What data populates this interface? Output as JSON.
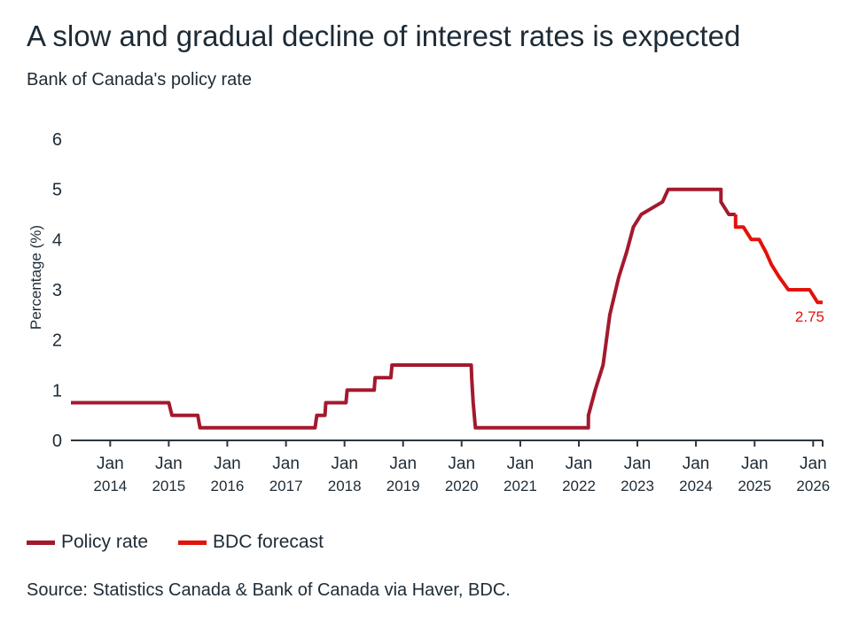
{
  "title": "A slow and gradual decline of interest rates is expected",
  "subtitle": "Bank of Canada's policy rate",
  "source": "Source: Statistics Canada & Bank of Canada via Haver, BDC.",
  "colors": {
    "policy": "#a3192e",
    "forecast": "#e3120b",
    "text": "#1d2b36"
  },
  "chart_data": {
    "type": "line",
    "title": "A slow and gradual decline of interest rates is expected",
    "subtitle": "Bank of Canada's policy rate",
    "xlabel": "",
    "ylabel": "Percentage (%)",
    "ylim": [
      0,
      6
    ],
    "xlim": [
      "2013-05-01",
      "2026-03-01"
    ],
    "yticks": [
      0,
      1,
      2,
      3,
      4,
      5,
      6
    ],
    "xticks": [
      {
        "date": "2014-01-01",
        "line1": "Jan",
        "line2": "2014"
      },
      {
        "date": "2015-01-01",
        "line1": "Jan",
        "line2": "2015"
      },
      {
        "date": "2016-01-01",
        "line1": "Jan",
        "line2": "2016"
      },
      {
        "date": "2017-01-01",
        "line1": "Jan",
        "line2": "2017"
      },
      {
        "date": "2018-01-01",
        "line1": "Jan",
        "line2": "2018"
      },
      {
        "date": "2019-01-01",
        "line1": "Jan",
        "line2": "2019"
      },
      {
        "date": "2020-01-01",
        "line1": "Jan",
        "line2": "2020"
      },
      {
        "date": "2021-01-01",
        "line1": "Jan",
        "line2": "2021"
      },
      {
        "date": "2022-01-01",
        "line1": "Jan",
        "line2": "2022"
      },
      {
        "date": "2023-01-01",
        "line1": "Jan",
        "line2": "2023"
      },
      {
        "date": "2024-01-01",
        "line1": "Jan",
        "line2": "2024"
      },
      {
        "date": "2025-01-01",
        "line1": "Jan",
        "line2": "2025"
      },
      {
        "date": "2026-01-01",
        "line1": "Jan",
        "line2": "2026"
      }
    ],
    "grid": false,
    "legend_position": "bottom-left",
    "series": [
      {
        "name": "Policy rate",
        "color": "#a3192e",
        "points": [
          [
            "2013-05-01",
            0.75
          ],
          [
            "2015-01-01",
            0.75
          ],
          [
            "2015-01-21",
            0.5
          ],
          [
            "2015-07-01",
            0.5
          ],
          [
            "2015-07-15",
            0.25
          ],
          [
            "2017-07-01",
            0.25
          ],
          [
            "2017-07-12",
            0.5
          ],
          [
            "2017-09-01",
            0.5
          ],
          [
            "2017-09-06",
            0.75
          ],
          [
            "2018-01-10",
            0.75
          ],
          [
            "2018-01-17",
            1.0
          ],
          [
            "2018-07-05",
            1.0
          ],
          [
            "2018-07-11",
            1.25
          ],
          [
            "2018-10-17",
            1.25
          ],
          [
            "2018-10-24",
            1.5
          ],
          [
            "2020-03-01",
            1.5
          ],
          [
            "2020-03-04",
            1.25
          ],
          [
            "2020-03-13",
            0.75
          ],
          [
            "2020-03-27",
            0.25
          ],
          [
            "2022-03-01",
            0.25
          ],
          [
            "2022-03-02",
            0.5
          ],
          [
            "2022-04-13",
            1.0
          ],
          [
            "2022-06-01",
            1.5
          ],
          [
            "2022-07-13",
            2.5
          ],
          [
            "2022-09-07",
            3.25
          ],
          [
            "2022-10-26",
            3.75
          ],
          [
            "2022-12-07",
            4.25
          ],
          [
            "2023-01-25",
            4.5
          ],
          [
            "2023-06-07",
            4.75
          ],
          [
            "2023-07-12",
            5.0
          ],
          [
            "2024-06-05",
            5.0
          ],
          [
            "2024-06-05",
            4.75
          ],
          [
            "2024-07-24",
            4.5
          ],
          [
            "2024-09-04",
            4.5
          ]
        ]
      },
      {
        "name": "BDC forecast",
        "color": "#e3120b",
        "points": [
          [
            "2024-09-04",
            4.5
          ],
          [
            "2024-09-04",
            4.25
          ],
          [
            "2024-10-23",
            4.25
          ],
          [
            "2024-12-11",
            4.0
          ],
          [
            "2025-01-29",
            4.0
          ],
          [
            "2025-03-12",
            3.75
          ],
          [
            "2025-04-16",
            3.5
          ],
          [
            "2025-06-04",
            3.25
          ],
          [
            "2025-07-30",
            3.0
          ],
          [
            "2025-12-10",
            3.0
          ],
          [
            "2026-01-28",
            2.75
          ],
          [
            "2026-03-01",
            2.75
          ]
        ]
      }
    ],
    "annotations": [
      {
        "text": "2.75",
        "date": "2026-03-01",
        "value": 2.75,
        "color": "#e3120b"
      }
    ]
  }
}
